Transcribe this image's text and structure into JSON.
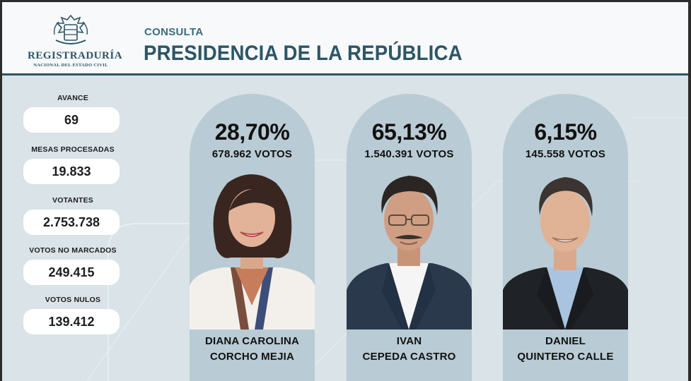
{
  "header": {
    "logo_name": "REGISTRADURÍA",
    "logo_sub": "NACIONAL DEL ESTADO CIVIL",
    "subtitle": "CONSULTA",
    "title": "PRESIDENCIA DE LA REPÚBLICA"
  },
  "stats": [
    {
      "label": "AVANCE",
      "value": "69"
    },
    {
      "label": "MESAS PROCESADAS",
      "value": "19.833"
    },
    {
      "label": "VOTANTES",
      "value": "2.753.738"
    },
    {
      "label": "VOTOS NO MARCADOS",
      "value": "249.415"
    },
    {
      "label": "VOTOS NULOS",
      "value": "139.412"
    }
  ],
  "candidates": [
    {
      "percent": "28,70%",
      "votes": "678.962 VOTOS",
      "name_line1": "DIANA CAROLINA",
      "name_line2": "CORCHO MEJIA"
    },
    {
      "percent": "65,13%",
      "votes": "1.540.391 VOTOS",
      "name_line1": "IVAN",
      "name_line2": "CEPEDA CASTRO"
    },
    {
      "percent": "6,15%",
      "votes": "145.558 VOTOS",
      "name_line1": "DANIEL",
      "name_line2": "QUINTERO CALLE"
    }
  ],
  "colors": {
    "brand": "#2c5566",
    "background": "#d9e3e8",
    "card": "#b9cbd4"
  }
}
